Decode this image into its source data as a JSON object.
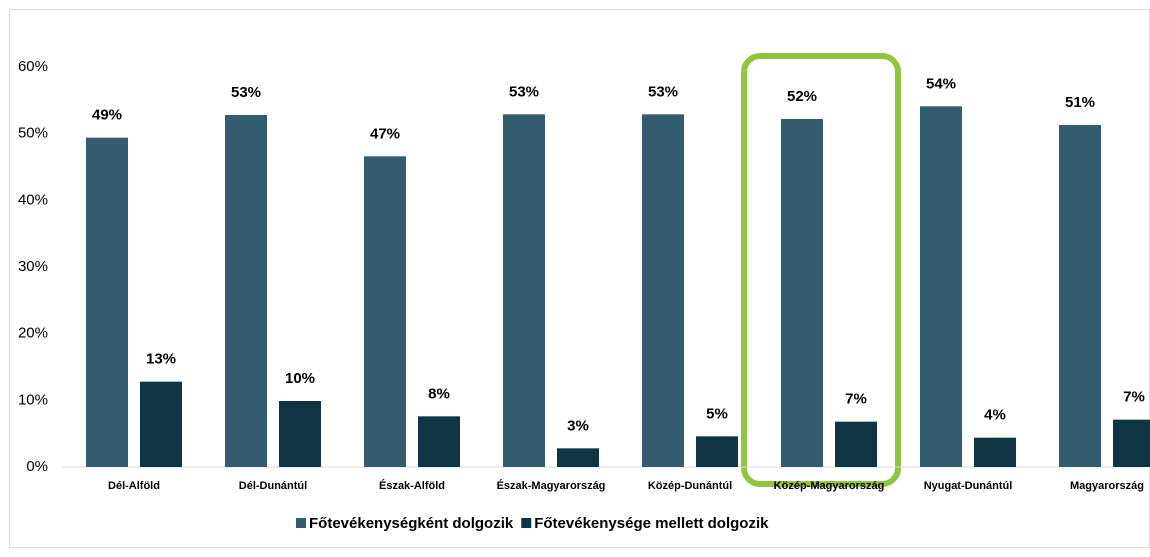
{
  "chart_data": {
    "type": "bar",
    "categories": [
      "Dél-Alföld",
      "Dél-Dunántúl",
      "Észak-Alföld",
      "Észak-Magyarország",
      "Közép-Dunántúl",
      "Közép-Magyarország",
      "Nyugat-Dunántúl",
      "Magyarország"
    ],
    "series": [
      {
        "name": "Főtevékenységként dolgozik",
        "color": "#335c6e",
        "values": [
          49.4,
          52.8,
          46.6,
          52.9,
          52.9,
          52.2,
          54.1,
          51.3
        ],
        "value_labels": [
          "49%",
          "53%",
          "47%",
          "53%",
          "53%",
          "52%",
          "54%",
          "51%"
        ]
      },
      {
        "name": "Főtevékenysége mellett dolgozik",
        "color": "#0f3443",
        "values": [
          12.8,
          9.9,
          7.6,
          2.8,
          4.6,
          6.8,
          4.4,
          7.1
        ],
        "value_labels": [
          "13%",
          "10%",
          "8%",
          "3%",
          "5%",
          "7%",
          "4%",
          "7%"
        ]
      }
    ],
    "ylim": [
      0,
      60
    ],
    "yticks": [
      {
        "value": 0,
        "label": "0%"
      },
      {
        "value": 10,
        "label": "10%"
      },
      {
        "value": 20,
        "label": "20%"
      },
      {
        "value": 30,
        "label": "30%"
      },
      {
        "value": 40,
        "label": "40%"
      },
      {
        "value": 50,
        "label": "50%"
      },
      {
        "value": 60,
        "label": "60%"
      }
    ],
    "grid": false,
    "legend": "bottom"
  }
}
